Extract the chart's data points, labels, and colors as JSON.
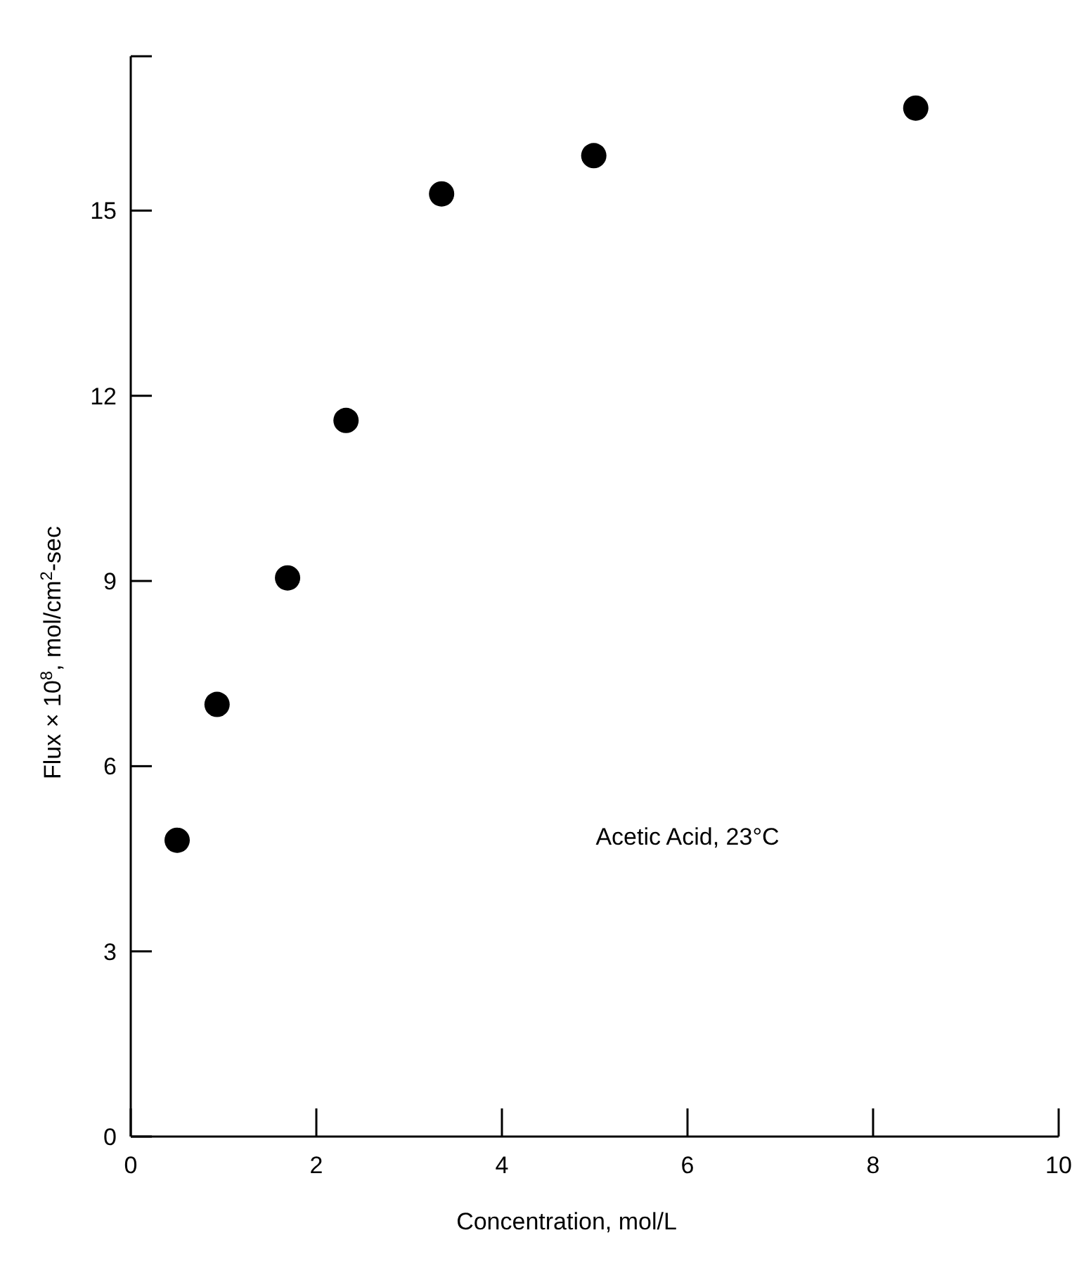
{
  "chart_data": {
    "type": "scatter",
    "xlabel": "Concentration, mol/L",
    "ylabel": "Flux × 10$^{8}$, mol/cm$^{2}$-sec",
    "x": [
      0.5,
      0.93,
      1.69,
      2.32,
      3.35,
      4.99,
      8.46
    ],
    "series": [
      {
        "color": "#000000",
        "values": [
          4.8,
          7.0,
          9.05,
          11.6,
          15.27,
          15.89,
          16.66
        ]
      }
    ],
    "xlim": [
      0,
      10
    ],
    "xticks": [
      0,
      2,
      4,
      6,
      8,
      10
    ],
    "ylim": [
      0,
      17.5
    ],
    "yticks": [
      0,
      3,
      6,
      9,
      12,
      15,
      {
        "value": 17.5,
        "label": null
      }
    ],
    "marker": "circle",
    "grid": false,
    "annotations": [
      "Acetic Acid, 23°C"
    ]
  }
}
